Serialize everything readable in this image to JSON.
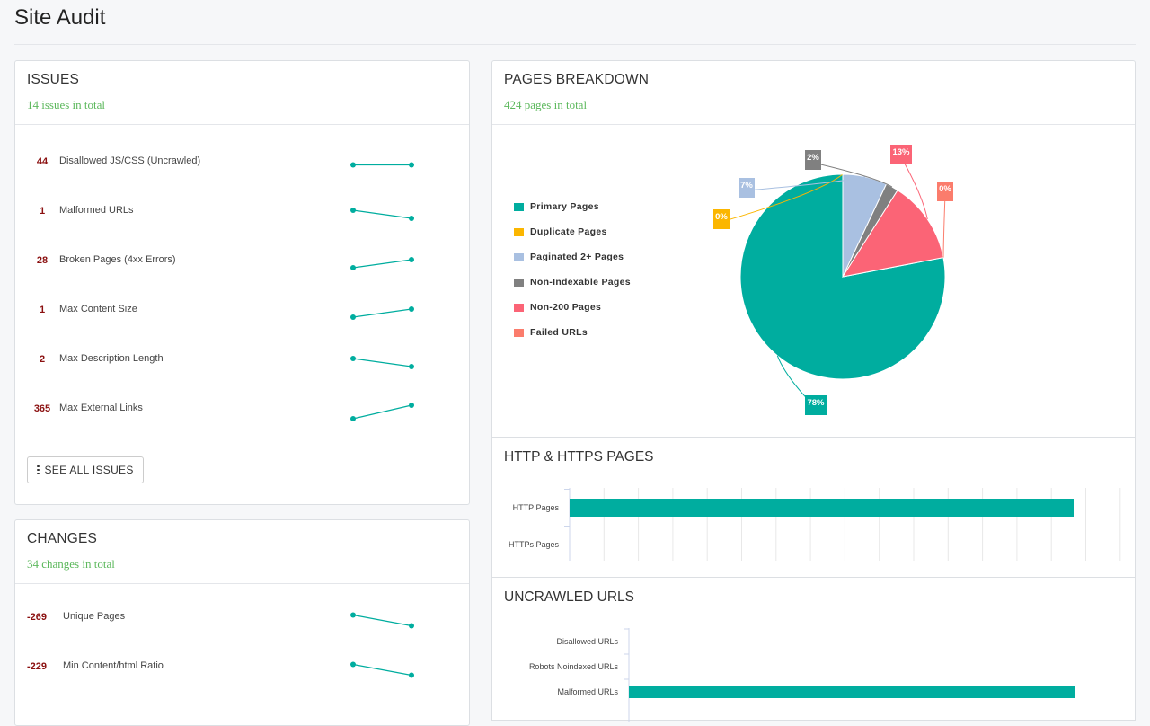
{
  "page": {
    "title": "Site Audit"
  },
  "issues": {
    "title": "ISSUES",
    "subtitle": "14 issues in total",
    "rows": [
      {
        "count": "44",
        "label": "Disallowed JS/CSS (Uncrawled)",
        "trend": [
          0.5,
          0.5
        ]
      },
      {
        "count": "1",
        "label": "Malformed URLs",
        "trend": [
          0.8,
          0.2
        ]
      },
      {
        "count": "28",
        "label": "Broken Pages (4xx Errors)",
        "trend": [
          0.2,
          0.8
        ]
      },
      {
        "count": "1",
        "label": "Max Content Size",
        "trend": [
          0.2,
          0.8
        ]
      },
      {
        "count": "2",
        "label": "Max Description Length",
        "trend": [
          0.8,
          0.2
        ]
      },
      {
        "count": "365",
        "label": "Max External Links",
        "trend": [
          0.0,
          1.0
        ]
      }
    ],
    "see_all_label": "SEE ALL ISSUES"
  },
  "changes": {
    "title": "CHANGES",
    "subtitle": "34 changes in total",
    "rows": [
      {
        "count": "-269",
        "label": "Unique Pages",
        "trend": [
          0.9,
          0.1
        ]
      },
      {
        "count": "-229",
        "label": "Min Content/html Ratio",
        "trend": [
          0.9,
          0.1
        ]
      }
    ]
  },
  "breakdown": {
    "title": "PAGES BREAKDOWN",
    "subtitle": "424 pages in total",
    "legend": [
      {
        "label": "Primary Pages",
        "color": "#00ad9f"
      },
      {
        "label": "Duplicate Pages",
        "color": "#fbb600"
      },
      {
        "label": "Paginated 2+ Pages",
        "color": "#a9c0e1"
      },
      {
        "label": "Non-Indexable Pages",
        "color": "#808080"
      },
      {
        "label": "Non-200 Pages",
        "color": "#fb6476"
      },
      {
        "label": "Failed URLs",
        "color": "#fb7c6c"
      }
    ]
  },
  "http": {
    "title": "HTTP & HTTPS PAGES",
    "bars": [
      {
        "label": "HTTP Pages",
        "value": 1.0
      },
      {
        "label": "HTTPs Pages",
        "value": 0.0
      }
    ]
  },
  "uncrawled": {
    "title": "UNCRAWLED URLS",
    "bars": [
      {
        "label": "Disallowed URLs",
        "value": 0.0
      },
      {
        "label": "Robots Noindexed URLs",
        "value": 0.0
      },
      {
        "label": "Malformed URLs",
        "value": 1.0
      }
    ]
  },
  "chart_data": [
    {
      "type": "pie",
      "labels": [
        "Primary Pages",
        "Duplicate Pages",
        "Paginated 2+ Pages",
        "Non-Indexable Pages",
        "Non-200 Pages",
        "Failed URLs"
      ],
      "values": [
        78,
        0,
        7,
        2,
        13,
        0
      ],
      "value_labels": [
        "78%",
        "0%",
        "7%",
        "2%",
        "13%",
        "0%"
      ],
      "colors": [
        "#00ad9f",
        "#fbb600",
        "#a9c0e1",
        "#808080",
        "#fb6476",
        "#fb7c6c"
      ],
      "legend": "left"
    },
    {
      "type": "bar",
      "orientation": "horizontal",
      "categories": [
        "HTTP Pages",
        "HTTPs Pages"
      ],
      "values": [
        424,
        0
      ]
    },
    {
      "type": "bar",
      "orientation": "horizontal",
      "categories": [
        "Disallowed URLs",
        "Robots Noindexed URLs",
        "Malformed URLs"
      ],
      "values": [
        0,
        0,
        1
      ]
    }
  ]
}
